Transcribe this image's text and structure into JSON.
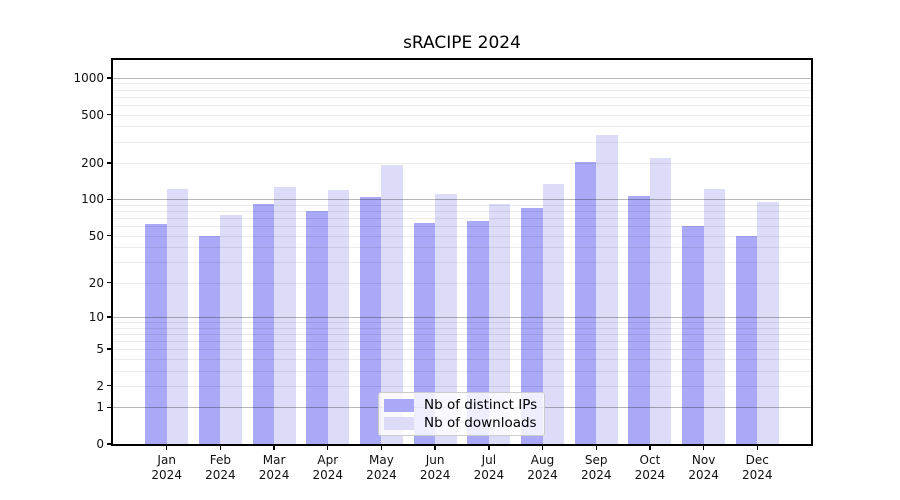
{
  "chart_data": {
    "type": "bar",
    "title": "sRACIPE 2024",
    "categories": [
      "Jan",
      "Feb",
      "Mar",
      "Apr",
      "May",
      "Jun",
      "Jul",
      "Aug",
      "Sep",
      "Oct",
      "Nov",
      "Dec"
    ],
    "year": "2024",
    "series": [
      {
        "name": "Nb of distinct IPs",
        "color": "#a9a9f7",
        "values": [
          62,
          50,
          92,
          80,
          105,
          64,
          66,
          85,
          202,
          107,
          60,
          50
        ]
      },
      {
        "name": "Nb of downloads",
        "color": "#dcdcf9",
        "values": [
          121,
          74,
          126,
          119,
          191,
          111,
          92,
          133,
          340,
          221,
          122,
          96
        ]
      }
    ],
    "y_scale": "log1p",
    "y_ticks": [
      0,
      1,
      2,
      5,
      10,
      20,
      50,
      100,
      200,
      500,
      1000
    ],
    "ylim": [
      0,
      1400
    ],
    "xlabel": "",
    "ylabel": "",
    "grid": true,
    "legend_position": "lower center"
  }
}
